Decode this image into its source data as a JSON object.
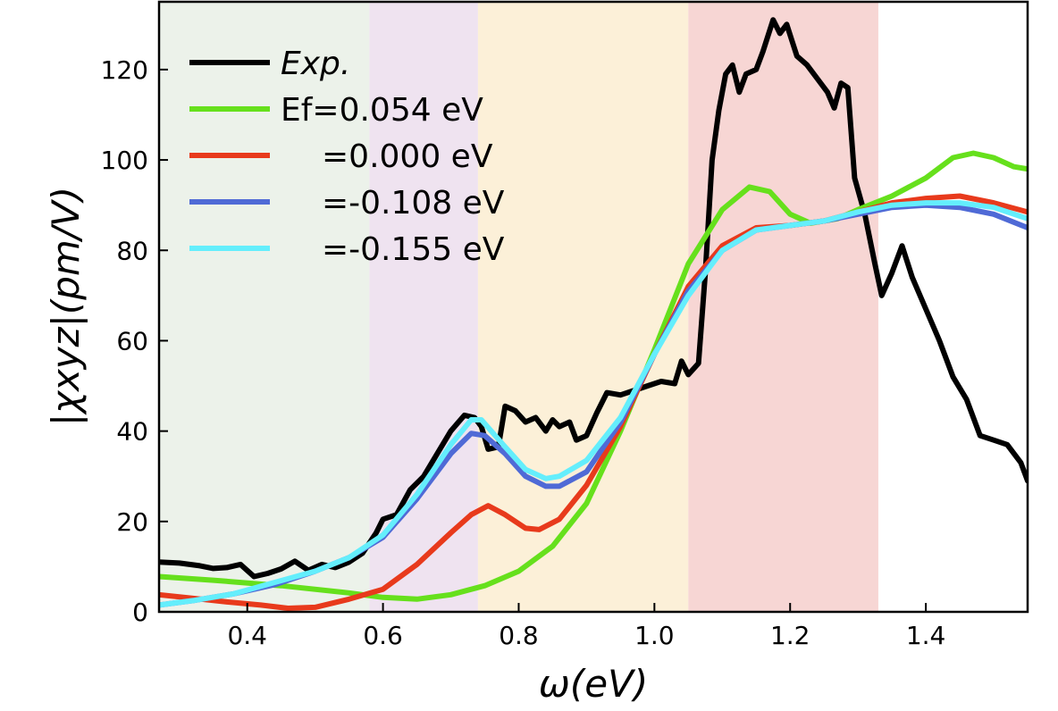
{
  "chart_data": {
    "type": "line",
    "xlabel": "ω(eV)",
    "ylabel": "|χxyz|(pm/V)",
    "xlim": [
      0.27,
      1.55
    ],
    "ylim": [
      0,
      135
    ],
    "x_ticks": [
      {
        "value": 0.4,
        "label": "0.4"
      },
      {
        "value": 0.6,
        "label": "0.6"
      },
      {
        "value": 0.8,
        "label": "0.8"
      },
      {
        "value": 1.0,
        "label": "1.0"
      },
      {
        "value": 1.2,
        "label": "1.2"
      },
      {
        "value": 1.4,
        "label": "1.4"
      }
    ],
    "y_ticks": [
      {
        "value": 0,
        "label": "0"
      },
      {
        "value": 20,
        "label": "20"
      },
      {
        "value": 40,
        "label": "40"
      },
      {
        "value": 60,
        "label": "60"
      },
      {
        "value": 80,
        "label": "80"
      },
      {
        "value": 100,
        "label": "100"
      },
      {
        "value": 120,
        "label": "120"
      }
    ],
    "shaded_regions": [
      {
        "x0": 0.27,
        "x1": 0.58,
        "color": "#ecf2ea"
      },
      {
        "x0": 0.58,
        "x1": 0.74,
        "color": "#efe3f0"
      },
      {
        "x0": 0.74,
        "x1": 1.05,
        "color": "#fcf0d8"
      },
      {
        "x0": 1.05,
        "x1": 1.33,
        "color": "#f7d6d4"
      }
    ],
    "grid": false,
    "legend_position": "top-left",
    "series": [
      {
        "name": "Exp.",
        "color": "#000000",
        "points": [
          [
            0.27,
            11
          ],
          [
            0.3,
            10.8
          ],
          [
            0.33,
            10.2
          ],
          [
            0.35,
            9.6
          ],
          [
            0.37,
            9.8
          ],
          [
            0.39,
            10.5
          ],
          [
            0.41,
            7.8
          ],
          [
            0.43,
            8.5
          ],
          [
            0.45,
            9.5
          ],
          [
            0.47,
            11.2
          ],
          [
            0.49,
            9.2
          ],
          [
            0.51,
            10.5
          ],
          [
            0.53,
            9.8
          ],
          [
            0.55,
            11
          ],
          [
            0.57,
            13
          ],
          [
            0.59,
            17.5
          ],
          [
            0.6,
            20.5
          ],
          [
            0.62,
            21.5
          ],
          [
            0.64,
            27
          ],
          [
            0.66,
            30
          ],
          [
            0.68,
            35
          ],
          [
            0.7,
            40
          ],
          [
            0.72,
            43.5
          ],
          [
            0.735,
            43
          ],
          [
            0.745,
            41
          ],
          [
            0.755,
            36
          ],
          [
            0.77,
            36.5
          ],
          [
            0.78,
            45.5
          ],
          [
            0.795,
            44.5
          ],
          [
            0.81,
            42
          ],
          [
            0.825,
            43
          ],
          [
            0.84,
            40
          ],
          [
            0.85,
            42.5
          ],
          [
            0.86,
            41
          ],
          [
            0.875,
            42
          ],
          [
            0.885,
            38
          ],
          [
            0.9,
            39
          ],
          [
            0.915,
            44
          ],
          [
            0.93,
            48.5
          ],
          [
            0.95,
            48
          ],
          [
            0.97,
            49
          ],
          [
            0.99,
            50
          ],
          [
            1.01,
            51
          ],
          [
            1.03,
            50.5
          ],
          [
            1.04,
            55.5
          ],
          [
            1.05,
            52.5
          ],
          [
            1.065,
            55
          ],
          [
            1.075,
            75
          ],
          [
            1.085,
            100
          ],
          [
            1.095,
            111
          ],
          [
            1.105,
            119
          ],
          [
            1.115,
            121
          ],
          [
            1.125,
            115
          ],
          [
            1.135,
            119
          ],
          [
            1.15,
            120
          ],
          [
            1.16,
            124
          ],
          [
            1.175,
            131
          ],
          [
            1.185,
            128
          ],
          [
            1.195,
            130
          ],
          [
            1.21,
            123
          ],
          [
            1.225,
            121
          ],
          [
            1.24,
            118
          ],
          [
            1.255,
            115
          ],
          [
            1.265,
            111.5
          ],
          [
            1.275,
            117
          ],
          [
            1.285,
            116
          ],
          [
            1.295,
            96
          ],
          [
            1.31,
            88
          ],
          [
            1.325,
            77
          ],
          [
            1.335,
            70
          ],
          [
            1.35,
            75
          ],
          [
            1.365,
            81
          ],
          [
            1.38,
            74
          ],
          [
            1.4,
            67
          ],
          [
            1.42,
            60
          ],
          [
            1.44,
            52
          ],
          [
            1.46,
            47
          ],
          [
            1.48,
            39
          ],
          [
            1.5,
            38
          ],
          [
            1.52,
            37
          ],
          [
            1.54,
            33
          ],
          [
            1.55,
            29
          ]
        ]
      },
      {
        "name": "Ef=0.054 eV",
        "color": "#66e01c",
        "points": [
          [
            0.27,
            7.8
          ],
          [
            0.35,
            7
          ],
          [
            0.45,
            5.8
          ],
          [
            0.55,
            4.2
          ],
          [
            0.6,
            3.2
          ],
          [
            0.65,
            2.8
          ],
          [
            0.7,
            3.8
          ],
          [
            0.75,
            5.8
          ],
          [
            0.8,
            9
          ],
          [
            0.85,
            14.5
          ],
          [
            0.9,
            24
          ],
          [
            0.95,
            40
          ],
          [
            1.0,
            58
          ],
          [
            1.05,
            77
          ],
          [
            1.1,
            89
          ],
          [
            1.14,
            94
          ],
          [
            1.17,
            93
          ],
          [
            1.2,
            88
          ],
          [
            1.23,
            86
          ],
          [
            1.27,
            87
          ],
          [
            1.3,
            89
          ],
          [
            1.35,
            92
          ],
          [
            1.4,
            96
          ],
          [
            1.44,
            100.5
          ],
          [
            1.47,
            101.5
          ],
          [
            1.5,
            100.5
          ],
          [
            1.53,
            98.5
          ],
          [
            1.55,
            98
          ]
        ]
      },
      {
        "name": "=0.000 eV",
        "color": "#e83a1c",
        "points": [
          [
            0.27,
            3.8
          ],
          [
            0.32,
            3
          ],
          [
            0.37,
            2.2
          ],
          [
            0.42,
            1.5
          ],
          [
            0.46,
            0.8
          ],
          [
            0.5,
            1
          ],
          [
            0.55,
            2.8
          ],
          [
            0.6,
            5
          ],
          [
            0.65,
            10.5
          ],
          [
            0.7,
            17.5
          ],
          [
            0.73,
            21.5
          ],
          [
            0.755,
            23.5
          ],
          [
            0.78,
            21.5
          ],
          [
            0.81,
            18.5
          ],
          [
            0.83,
            18.2
          ],
          [
            0.86,
            20.5
          ],
          [
            0.9,
            28
          ],
          [
            0.95,
            41
          ],
          [
            1.0,
            57
          ],
          [
            1.05,
            72
          ],
          [
            1.1,
            81
          ],
          [
            1.15,
            85
          ],
          [
            1.2,
            85.5
          ],
          [
            1.25,
            86.5
          ],
          [
            1.3,
            88.5
          ],
          [
            1.35,
            90.5
          ],
          [
            1.4,
            91.5
          ],
          [
            1.45,
            92
          ],
          [
            1.5,
            90.5
          ],
          [
            1.55,
            88.5
          ]
        ]
      },
      {
        "name": "=-0.108 eV",
        "color": "#4f6ad6",
        "points": [
          [
            0.27,
            1.5
          ],
          [
            0.32,
            2.5
          ],
          [
            0.38,
            4
          ],
          [
            0.44,
            6
          ],
          [
            0.5,
            9
          ],
          [
            0.55,
            12
          ],
          [
            0.6,
            16.5
          ],
          [
            0.65,
            25
          ],
          [
            0.7,
            35
          ],
          [
            0.73,
            39.5
          ],
          [
            0.75,
            39
          ],
          [
            0.78,
            35
          ],
          [
            0.81,
            30
          ],
          [
            0.84,
            27.8
          ],
          [
            0.86,
            27.8
          ],
          [
            0.9,
            31
          ],
          [
            0.95,
            42
          ],
          [
            1.0,
            57
          ],
          [
            1.05,
            71
          ],
          [
            1.1,
            80
          ],
          [
            1.15,
            84.5
          ],
          [
            1.2,
            85.5
          ],
          [
            1.25,
            86.5
          ],
          [
            1.3,
            88
          ],
          [
            1.35,
            89.5
          ],
          [
            1.4,
            90
          ],
          [
            1.45,
            89.5
          ],
          [
            1.5,
            88
          ],
          [
            1.55,
            85
          ]
        ]
      },
      {
        "name": "=-0.155 eV",
        "color": "#64eefc",
        "points": [
          [
            0.27,
            1.5
          ],
          [
            0.32,
            2.5
          ],
          [
            0.38,
            4
          ],
          [
            0.44,
            6.5
          ],
          [
            0.5,
            9
          ],
          [
            0.55,
            12
          ],
          [
            0.6,
            17
          ],
          [
            0.65,
            26
          ],
          [
            0.7,
            37
          ],
          [
            0.73,
            42.5
          ],
          [
            0.745,
            42.5
          ],
          [
            0.78,
            36.5
          ],
          [
            0.81,
            31.5
          ],
          [
            0.84,
            29.5
          ],
          [
            0.86,
            30
          ],
          [
            0.9,
            33.5
          ],
          [
            0.95,
            43
          ],
          [
            1.0,
            57
          ],
          [
            1.05,
            70
          ],
          [
            1.1,
            80
          ],
          [
            1.15,
            84.5
          ],
          [
            1.2,
            85.5
          ],
          [
            1.25,
            86.5
          ],
          [
            1.3,
            88.5
          ],
          [
            1.35,
            90
          ],
          [
            1.4,
            90.5
          ],
          [
            1.45,
            90.5
          ],
          [
            1.5,
            89.5
          ],
          [
            1.55,
            87
          ]
        ]
      }
    ]
  }
}
